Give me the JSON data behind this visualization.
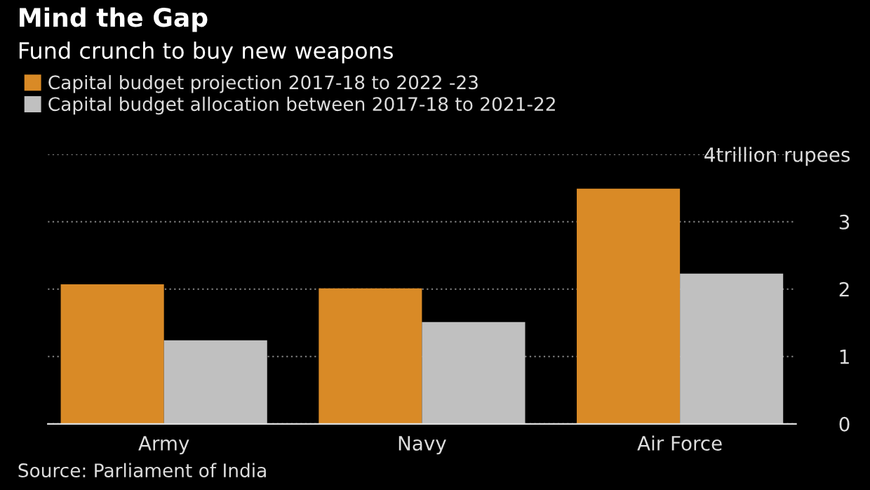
{
  "chart_data": {
    "type": "bar",
    "title": "Mind the Gap",
    "subtitle": "Fund crunch to buy new weapons",
    "categories": [
      "Army",
      "Navy",
      "Air Force"
    ],
    "series": [
      {
        "name": "Capital budget projection 2017-18 to 2022 -23",
        "color": "#d98a26",
        "values": [
          2.07,
          2.01,
          3.49
        ]
      },
      {
        "name": "Capital budget allocation between 2017-18 to 2021-22",
        "color": "#c0c0c0",
        "values": [
          1.24,
          1.51,
          2.23
        ]
      }
    ],
    "ylim": [
      0,
      4
    ],
    "yticks": [
      0,
      1,
      2,
      3,
      {
        "value": 4,
        "label": "4trillion rupees"
      }
    ],
    "grid": "y",
    "legend": "top left",
    "annotations": [
      "Source: Parliament of India"
    ]
  }
}
